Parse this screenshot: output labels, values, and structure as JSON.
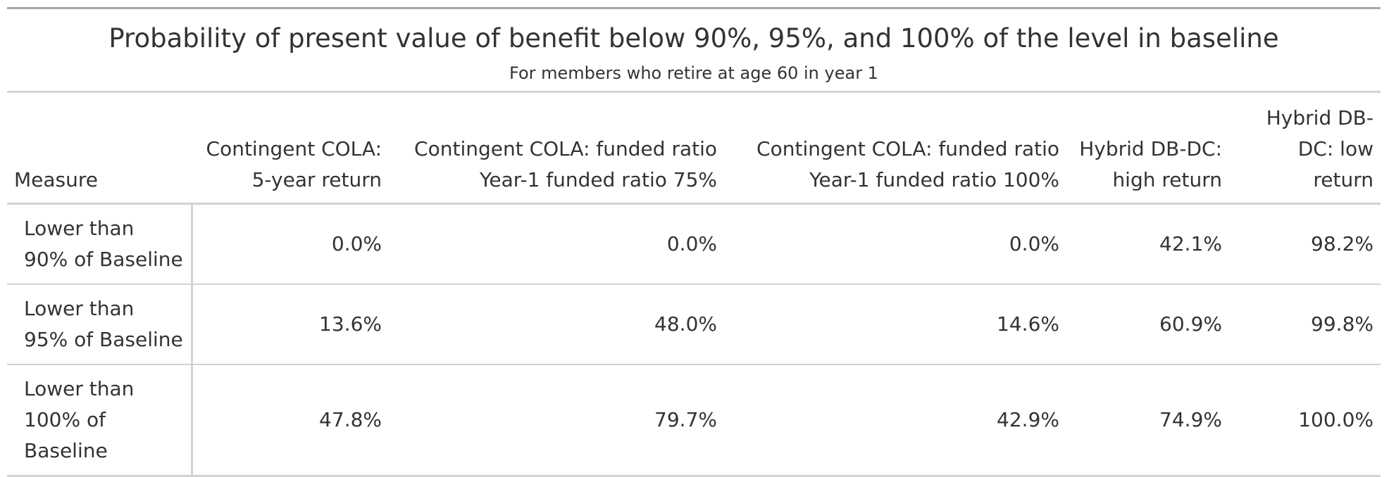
{
  "chart_data": {
    "type": "table",
    "title": "Probability of present value of benefit below 90%, 95%, and 100% of the level in baseline",
    "subtitle": "For members who retire at age 60 in year 1",
    "stub_header": "Measure",
    "columns": [
      {
        "line1": "Contingent COLA:",
        "line2": "5-year return"
      },
      {
        "line1": "Contingent COLA: funded ratio",
        "line2": "Year-1 funded ratio 75%"
      },
      {
        "line1": "Contingent COLA: funded ratio",
        "line2": "Year-1 funded ratio 100%"
      },
      {
        "line1": "Hybrid DB-DC:",
        "line2": "high return"
      },
      {
        "line1": "Hybrid DB-",
        "line2": "DC: low return"
      }
    ],
    "rows": [
      {
        "label": "Lower than 90% of Baseline",
        "values": [
          "0.0%",
          "0.0%",
          "0.0%",
          "42.1%",
          "98.2%"
        ]
      },
      {
        "label": "Lower than 95% of Baseline",
        "values": [
          "13.6%",
          "48.0%",
          "14.6%",
          "60.9%",
          "99.8%"
        ]
      },
      {
        "label": "Lower than 100% of Baseline",
        "values": [
          "47.8%",
          "79.7%",
          "42.9%",
          "74.9%",
          "100.0%"
        ]
      }
    ]
  }
}
